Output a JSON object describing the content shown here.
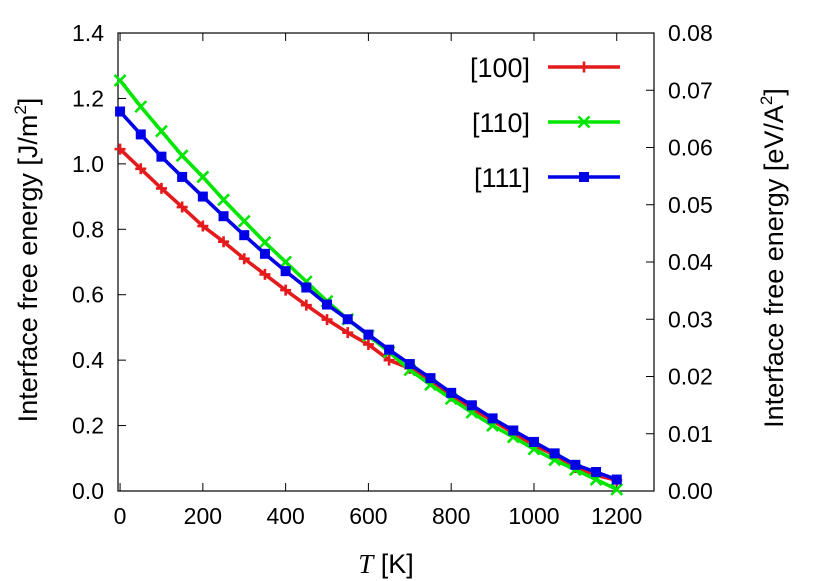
{
  "chart_data": {
    "type": "line",
    "xlabel_var": "T",
    "xlabel_unit": " [K]",
    "ylabel_left": "Interface free energy [J/m",
    "ylabel_left_sup": "2",
    "ylabel_left_end": "]",
    "ylabel_right": "Interface free energy [eV/A",
    "ylabel_right_sup": "2",
    "ylabel_right_end": "]",
    "xlim": [
      -5,
      1290
    ],
    "ylim_left": [
      0,
      1.4
    ],
    "ylim_right": [
      0,
      0.08
    ],
    "xticks": [
      "0",
      "200",
      "400",
      "600",
      "800",
      "1000",
      "1200"
    ],
    "yticks_left": [
      "0.0",
      "0.2",
      "0.4",
      "0.6",
      "0.8",
      "1.0",
      "1.2",
      "1.4"
    ],
    "yticks_right": [
      "0.00",
      "0.01",
      "0.02",
      "0.03",
      "0.04",
      "0.05",
      "0.06",
      "0.07",
      "0.08"
    ],
    "grid": false,
    "legend_position": "top-right",
    "series": [
      {
        "name": "[100]",
        "color": "#e41a1c",
        "marker": "plus",
        "x": [
          0,
          50,
          100,
          150,
          200,
          250,
          300,
          350,
          400,
          450,
          500,
          550,
          600,
          650,
          700,
          750,
          800,
          850,
          900,
          950,
          1000,
          1050,
          1100,
          1150,
          1200
        ],
        "y": [
          1.045,
          0.985,
          0.925,
          0.868,
          0.81,
          0.762,
          0.71,
          0.662,
          0.614,
          0.568,
          0.524,
          0.484,
          0.448,
          0.4,
          0.375,
          0.335,
          0.29,
          0.252,
          0.215,
          0.178,
          0.14,
          0.11,
          0.072,
          0.048,
          0.033
        ]
      },
      {
        "name": "[110]",
        "color": "#00e600",
        "marker": "cross",
        "x": [
          0,
          50,
          100,
          150,
          200,
          250,
          300,
          350,
          400,
          450,
          500,
          550,
          600,
          650,
          700,
          750,
          800,
          850,
          900,
          950,
          1000,
          1050,
          1100,
          1150,
          1200
        ],
        "y": [
          1.255,
          1.175,
          1.1,
          1.025,
          0.96,
          0.89,
          0.825,
          0.76,
          0.7,
          0.64,
          0.58,
          0.525,
          0.475,
          0.425,
          0.37,
          0.325,
          0.282,
          0.24,
          0.2,
          0.165,
          0.128,
          0.095,
          0.065,
          0.035,
          0.005
        ]
      },
      {
        "name": "[111]",
        "color": "#0000e6",
        "marker": "square",
        "x": [
          0,
          50,
          100,
          150,
          200,
          250,
          300,
          350,
          400,
          450,
          500,
          550,
          600,
          650,
          700,
          750,
          800,
          850,
          900,
          950,
          1000,
          1050,
          1100,
          1150,
          1200
        ],
        "y": [
          1.16,
          1.09,
          1.022,
          0.96,
          0.9,
          0.84,
          0.782,
          0.725,
          0.672,
          0.622,
          0.57,
          0.525,
          0.478,
          0.432,
          0.388,
          0.345,
          0.3,
          0.262,
          0.222,
          0.185,
          0.15,
          0.115,
          0.08,
          0.058,
          0.035
        ]
      }
    ]
  }
}
